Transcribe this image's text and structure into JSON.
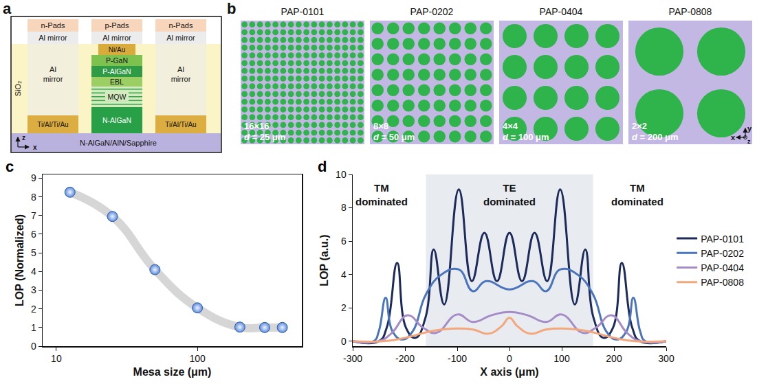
{
  "panel_a": {
    "letter": "a",
    "insulator": "SiO₂",
    "substrate": "N-AlGaN/AlN/Sapphire",
    "axes": {
      "vertical": "z",
      "horizontal": "x"
    },
    "n_column": {
      "pad": "n-Pads",
      "mirror": "Al mirror",
      "body": "Al mirror",
      "contact": "Ti/Al/Ti/Au"
    },
    "p_column": {
      "pad": "p-Pads",
      "mirror": "Al mirror",
      "contact": "Ni/Au",
      "layers": [
        "P-GaN",
        "P-AlGaN",
        "EBL",
        "MQW",
        "N-AlGaN"
      ]
    }
  },
  "panel_b": {
    "letter": "b",
    "axes": {
      "vertical": "y",
      "horizontal": "x",
      "normal": "z"
    },
    "patterns": [
      {
        "title": "PAP-0101",
        "n": 16,
        "grid_label": "16×16",
        "size_label": "d = 25 μm"
      },
      {
        "title": "PAP-0202",
        "n": 8,
        "grid_label": "8×8",
        "size_label": "d = 50 μm"
      },
      {
        "title": "PAP-0404",
        "n": 4,
        "grid_label": "4×4",
        "size_label": "d = 100 μm"
      },
      {
        "title": "PAP-0808",
        "n": 2,
        "grid_label": "2×2",
        "size_label": "d = 200 μm"
      }
    ]
  },
  "chart_data": [
    {
      "letter": "c",
      "type": "scatter",
      "x_label": "Mesa size (μm)",
      "y_label": "LOP (Normalized)",
      "log": "x",
      "grid": false,
      "x": [
        12.5,
        25,
        50,
        100,
        200,
        300,
        400
      ],
      "xlim": [
        8,
        550
      ],
      "xticks": [
        10,
        100
      ],
      "ylim": [
        0,
        9.2
      ],
      "yticks": [
        0,
        1,
        2,
        3,
        4,
        5,
        6,
        7,
        8,
        9
      ],
      "series": [
        {
          "type": "line",
          "color": "#d6d6d6",
          "line_style": "spline",
          "values": [
            8.25,
            6.95,
            4.1,
            2.05,
            1.02,
            1.0,
            1.0
          ]
        },
        {
          "type": "scatter",
          "color": "#5b8ad8",
          "marker": "circle",
          "values": [
            8.25,
            6.95,
            4.1,
            2.05,
            1.02,
            1.0,
            1.0
          ]
        }
      ]
    },
    {
      "letter": "d",
      "type": "line",
      "line_style": "spline",
      "x_label": "X axis (μm)",
      "y_label": "LOP (a.u.)",
      "grid": false,
      "legend": "right",
      "xlim": [
        -300,
        300
      ],
      "xticks": [
        -300,
        -200,
        -100,
        0,
        100,
        200,
        300
      ],
      "ylim": [
        -0.3,
        10
      ],
      "yticks": [
        0,
        2,
        4,
        6,
        8,
        10
      ],
      "shaded_x": [
        -160,
        160
      ],
      "annotations": [
        {
          "text": "TM dominated",
          "x": -245,
          "y": 8.8
        },
        {
          "text": "TE dominated",
          "x": 0,
          "y": 8.8
        },
        {
          "text": "TM dominated",
          "x": 245,
          "y": 8.8
        }
      ],
      "series": [
        {
          "name": "PAP-0101",
          "color": "#1c2b5a",
          "x": [
            -300,
            -250,
            -235,
            -215,
            -198,
            -180,
            -160,
            -145,
            -125,
            -97,
            -72,
            -48,
            -24,
            0,
            24,
            48,
            72,
            97,
            125,
            145,
            160,
            180,
            198,
            215,
            235,
            250,
            300
          ],
          "values": [
            0,
            0,
            0.8,
            4.7,
            0.8,
            0.2,
            1.5,
            5.5,
            2.2,
            9.1,
            3.6,
            6.5,
            3.6,
            6.5,
            3.6,
            6.5,
            3.6,
            9.1,
            2.2,
            5.5,
            1.5,
            0.2,
            0.8,
            4.7,
            0.8,
            0,
            0
          ]
        },
        {
          "name": "PAP-0202",
          "color": "#4a74bb",
          "x": [
            -300,
            -260,
            -250,
            -237,
            -224,
            -205,
            -185,
            -160,
            -130,
            -97,
            -70,
            -45,
            0,
            45,
            70,
            97,
            130,
            160,
            185,
            205,
            224,
            237,
            250,
            260,
            300
          ],
          "values": [
            0,
            0,
            0.6,
            2.6,
            0.6,
            0.1,
            0.6,
            2.8,
            4.0,
            4.3,
            3.0,
            3.6,
            3.1,
            3.6,
            3.0,
            4.3,
            4.0,
            2.8,
            0.6,
            0.1,
            0.6,
            2.6,
            0.6,
            0,
            0
          ]
        },
        {
          "name": "PAP-0404",
          "color": "#a58cc6",
          "x": [
            -300,
            -250,
            -225,
            -195,
            -165,
            -140,
            -100,
            -70,
            -35,
            0,
            35,
            70,
            100,
            140,
            165,
            195,
            225,
            250,
            300
          ],
          "values": [
            0,
            0,
            0.5,
            1.55,
            0.8,
            0.5,
            1.6,
            1.15,
            1.55,
            1.75,
            1.55,
            1.15,
            1.6,
            0.5,
            0.8,
            1.55,
            0.5,
            0,
            0
          ]
        },
        {
          "name": "PAP-0808",
          "color": "#f2a77c",
          "x": [
            -300,
            -240,
            -200,
            -150,
            -110,
            -70,
            -40,
            -15,
            0,
            15,
            40,
            70,
            110,
            150,
            200,
            240,
            300
          ],
          "values": [
            0,
            0,
            0.2,
            0.6,
            0.75,
            0.7,
            0.45,
            0.9,
            1.4,
            0.9,
            0.45,
            0.7,
            0.75,
            0.6,
            0.2,
            0,
            0
          ]
        }
      ]
    }
  ]
}
